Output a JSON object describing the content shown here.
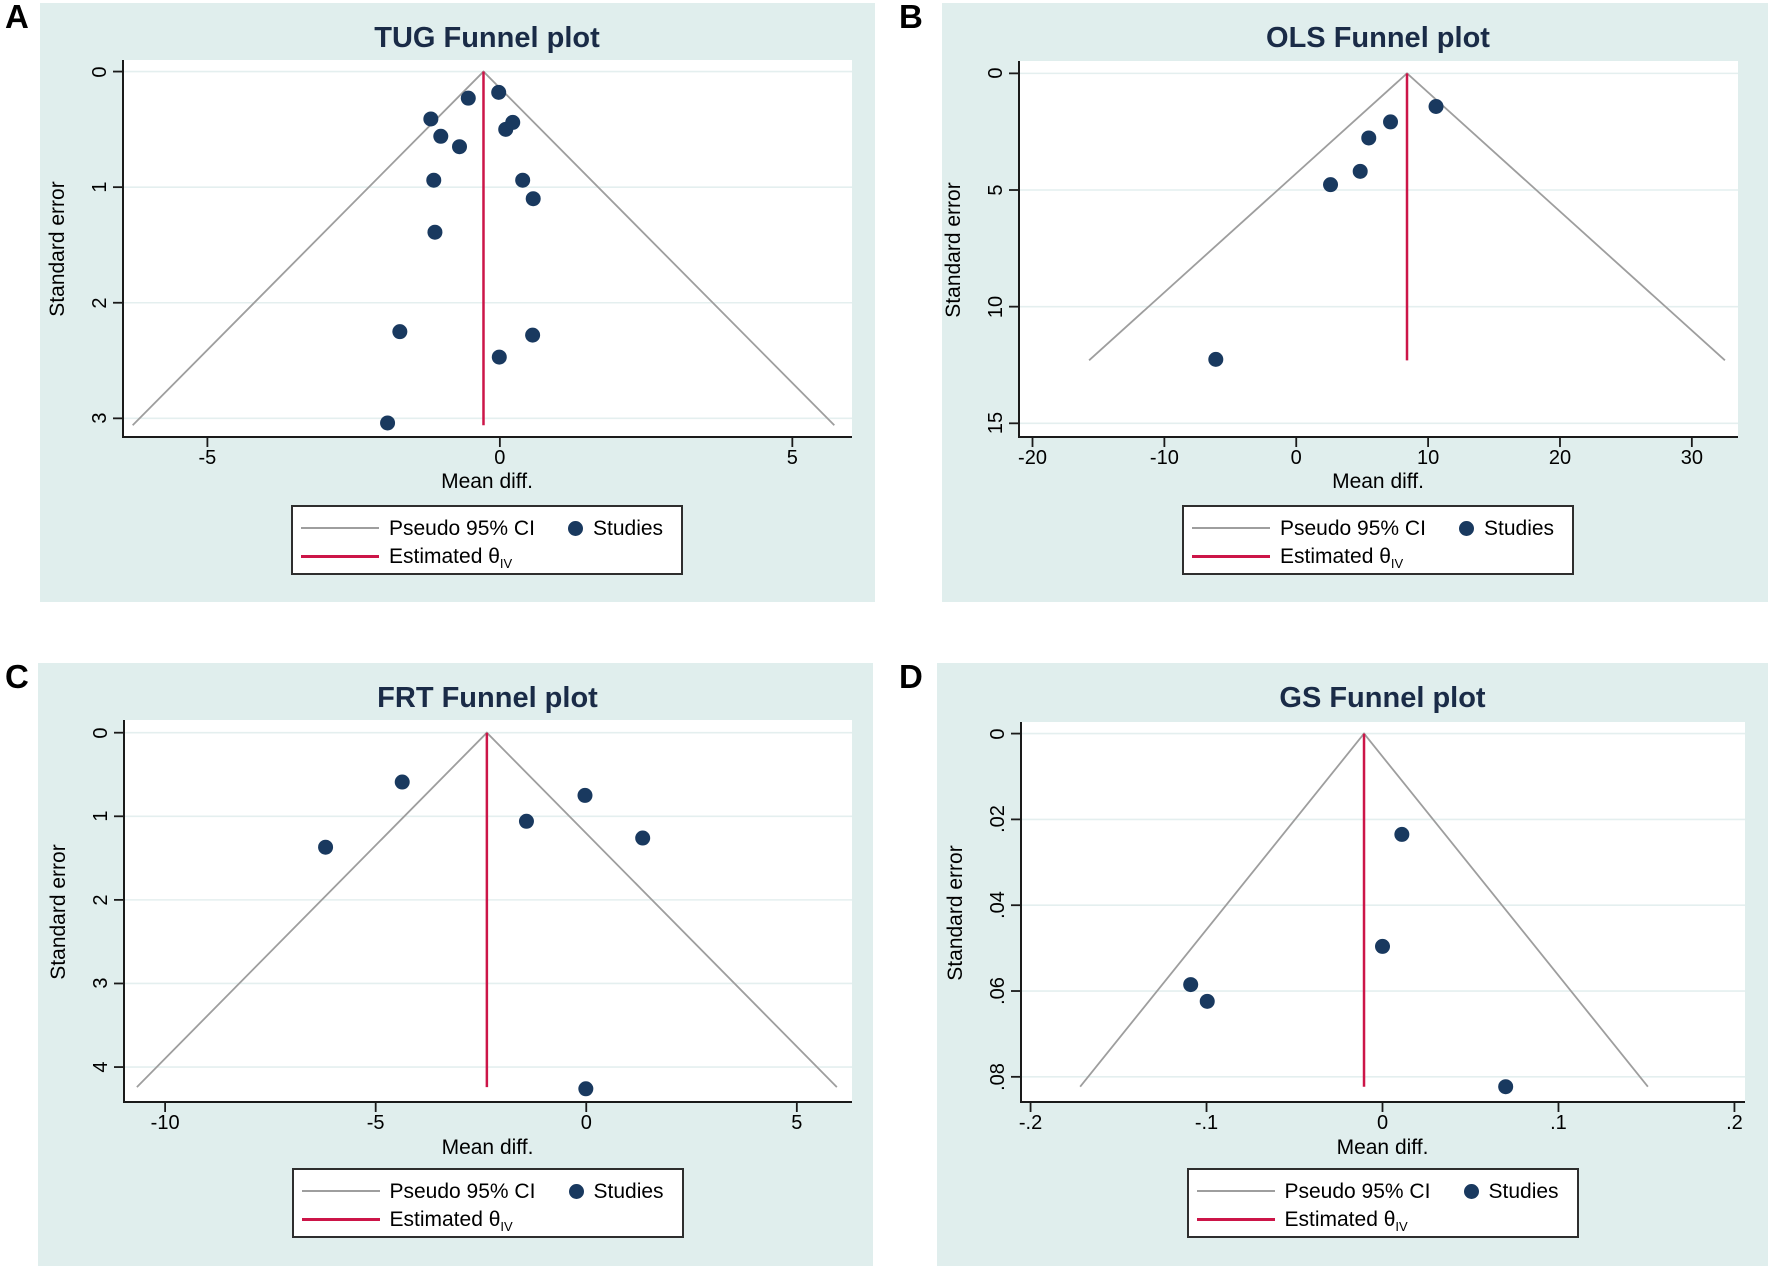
{
  "figure": {
    "description": "Four Stata-style meta-analysis funnel plots arranged in a 2x2 grid",
    "colors": {
      "panel_background": "#e0eeed",
      "plot_background": "#ffffff",
      "gridline": "#e4efef",
      "axis": "#1a1a1a",
      "pseudo_ci_line": "#9e9e9e",
      "estimate_line": "#cc1548",
      "study_marker": "#19395f",
      "title_text": "#1a2b47",
      "panel_letter": "#000000"
    },
    "legend": {
      "ci_label": "Pseudo 95% CI",
      "studies_label": "Studies",
      "estimate_label": "Estimated θ",
      "estimate_sub": "IV"
    }
  },
  "chart_data": [
    {
      "panel_label": "A",
      "type": "scatter",
      "title": "TUG Funnel plot",
      "xlabel": "Mean diff.",
      "ylabel": "Standard error",
      "x_ticks": [
        -5,
        0,
        5
      ],
      "x_tick_labels": [
        "-5",
        "0",
        "5"
      ],
      "y_ticks": [
        0,
        1,
        2,
        3
      ],
      "y_tick_labels": [
        "0",
        "1",
        "2",
        "3"
      ],
      "xlim": [
        -6.46,
        6.02
      ],
      "se_lim": [
        -0.1,
        3.17
      ],
      "theta_iv": -0.28,
      "pseudo_ci_max_se": 3.06,
      "grid": true,
      "points": [
        [
          -0.54,
          0.23
        ],
        [
          -0.02,
          0.18
        ],
        [
          -1.18,
          0.41
        ],
        [
          0.1,
          0.5
        ],
        [
          0.22,
          0.44
        ],
        [
          -1.01,
          0.56
        ],
        [
          -0.69,
          0.65
        ],
        [
          -1.13,
          0.94
        ],
        [
          0.39,
          0.94
        ],
        [
          0.57,
          1.1
        ],
        [
          -1.11,
          1.39
        ],
        [
          -1.71,
          2.25
        ],
        [
          0.56,
          2.28
        ],
        [
          -0.01,
          2.47
        ],
        [
          -1.92,
          3.04
        ]
      ]
    },
    {
      "panel_label": "B",
      "type": "scatter",
      "title": "OLS Funnel plot",
      "xlabel": "Mean diff.",
      "ylabel": "Standard error",
      "x_ticks": [
        -20,
        -10,
        0,
        10,
        20,
        30
      ],
      "x_tick_labels": [
        "-20",
        "-10",
        "0",
        "10",
        "20",
        "30"
      ],
      "y_ticks": [
        0,
        5,
        10,
        15
      ],
      "y_tick_labels": [
        "0",
        "5",
        "10",
        "15"
      ],
      "xlim": [
        -21.1,
        33.5
      ],
      "se_lim": [
        -0.53,
        15.63
      ],
      "theta_iv": 8.4,
      "pseudo_ci_max_se": 12.3,
      "grid": true,
      "points": [
        [
          10.6,
          1.42
        ],
        [
          7.15,
          2.08
        ],
        [
          5.5,
          2.77
        ],
        [
          4.85,
          4.2
        ],
        [
          2.6,
          4.77
        ],
        [
          -6.1,
          12.26
        ]
      ]
    },
    {
      "panel_label": "C",
      "type": "scatter",
      "title": "FRT Funnel plot",
      "xlabel": "Mean diff.",
      "ylabel": "Standard error",
      "x_ticks": [
        -10,
        -5,
        0,
        5
      ],
      "x_tick_labels": [
        "-10",
        "-5",
        "0",
        "5"
      ],
      "y_ticks": [
        0,
        1,
        2,
        3,
        4
      ],
      "y_tick_labels": [
        "0",
        "1",
        "2",
        "3",
        "4"
      ],
      "xlim": [
        -11.0,
        6.31
      ],
      "se_lim": [
        -0.152,
        4.43
      ],
      "theta_iv": -2.36,
      "pseudo_ci_max_se": 4.24,
      "grid": true,
      "points": [
        [
          -4.37,
          0.59
        ],
        [
          -6.19,
          1.37
        ],
        [
          -1.42,
          1.06
        ],
        [
          -0.03,
          0.75
        ],
        [
          1.34,
          1.26
        ],
        [
          -0.01,
          4.26
        ]
      ]
    },
    {
      "panel_label": "D",
      "type": "scatter",
      "title": "GS Funnel plot",
      "xlabel": "Mean diff.",
      "ylabel": "Standard error",
      "x_ticks": [
        -0.2,
        -0.1,
        0,
        0.1,
        0.2
      ],
      "x_tick_labels": [
        "-.2",
        "-.1",
        "0",
        ".1",
        ".2"
      ],
      "y_ticks": [
        0,
        0.02,
        0.04,
        0.06,
        0.08
      ],
      "y_tick_labels": [
        "0",
        ".02",
        ".04",
        ".06",
        ".08"
      ],
      "xlim": [
        -0.206,
        0.206
      ],
      "se_lim": [
        -0.0027,
        0.0861
      ],
      "theta_iv": -0.0105,
      "pseudo_ci_max_se": 0.0823,
      "grid": true,
      "points": [
        [
          0.011,
          0.0235
        ],
        [
          0.0,
          0.0496
        ],
        [
          -0.109,
          0.0585
        ],
        [
          -0.0996,
          0.0624
        ],
        [
          0.07,
          0.0823
        ]
      ]
    }
  ]
}
